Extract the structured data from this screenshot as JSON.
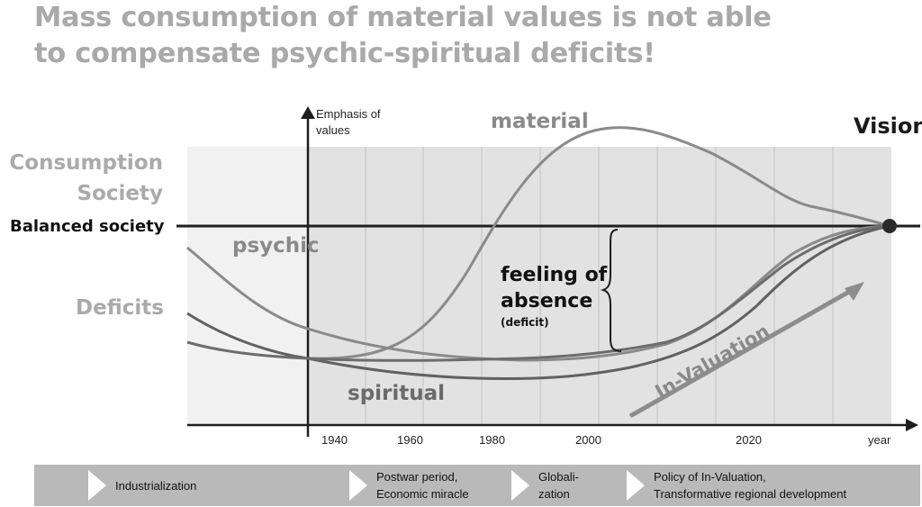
{
  "title": {
    "line1": "Mass consumption of material values is not able",
    "line2": "to compensate psychic-spiritual deficits!"
  },
  "y_axis_label": {
    "line1": "Emphasis of",
    "line2": "values"
  },
  "x_axis_label": "year",
  "side_labels": {
    "consumption_line1": "Consumption",
    "consumption_line2": "Society",
    "balanced": "Balanced society",
    "deficits": "Deficits"
  },
  "curve_labels": {
    "material": "material",
    "psychic": "psychic",
    "spiritual": "spiritual",
    "vision": "Vision"
  },
  "annotation": {
    "line1": "feeling of",
    "line2": "absence",
    "line3": "(deficit)"
  },
  "arrow_label": "In-Valuation",
  "x_ticks": [
    "1940",
    "1960",
    "1980",
    "2000",
    "2020"
  ],
  "timeline": [
    {
      "text": "Industrialization"
    },
    {
      "text": "Postwar period,\nEconomic miracle"
    },
    {
      "text": "Globali-\nzation"
    },
    {
      "text": "Policy of In-Valuation,\nTransformative regional development"
    }
  ]
}
